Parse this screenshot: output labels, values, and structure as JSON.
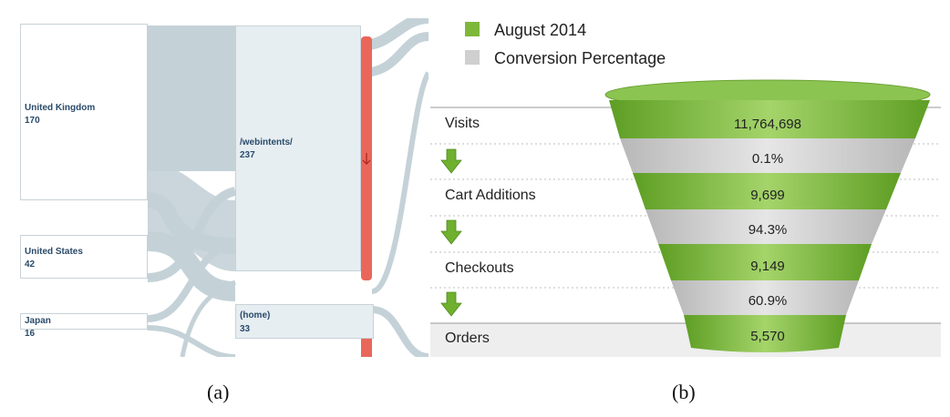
{
  "panel_a": {
    "caption": "(a)",
    "nodes": [
      {
        "label": "United Kingdom",
        "value": "170"
      },
      {
        "label": "United States",
        "value": "42"
      },
      {
        "label": "Japan",
        "value": "16"
      },
      {
        "label": "/webintents/",
        "value": "237"
      },
      {
        "label": "(home)",
        "value": "33"
      }
    ],
    "colors": {
      "link": "#c4d2d8",
      "node_fill": "#ffffff",
      "page_fill": "#e6eef2",
      "dropoff": "#e8675a"
    }
  },
  "panel_b": {
    "caption": "(b)",
    "legend": [
      {
        "label": "August 2014",
        "color": "#7db83a"
      },
      {
        "label": "Conversion Percentage",
        "color": "#cfcfcf"
      }
    ],
    "stages": [
      {
        "label": "Visits",
        "value": "11,764,698"
      },
      {
        "label": "Cart Additions",
        "value": "9,699"
      },
      {
        "label": "Checkouts",
        "value": "9,149"
      },
      {
        "label": "Orders",
        "value": "5,570"
      }
    ],
    "conversions": [
      "0.1%",
      "94.3%",
      "60.9%"
    ],
    "arrow_icon": "green-down-arrow-icon"
  }
}
